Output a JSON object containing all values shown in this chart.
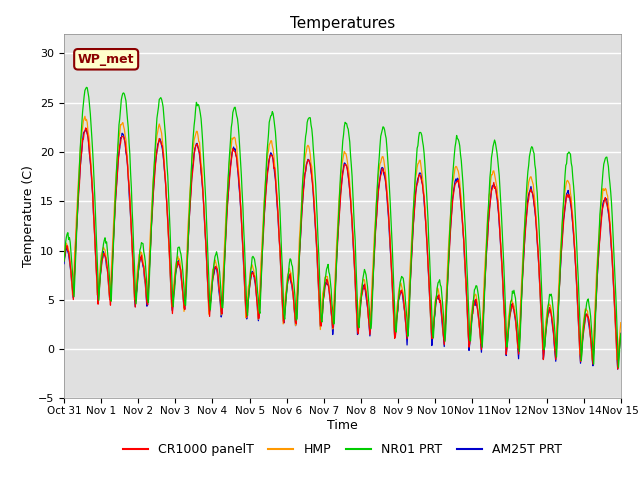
{
  "title": "Temperatures",
  "xlabel": "Time",
  "ylabel": "Temperature (C)",
  "ylim": [
    -5,
    32
  ],
  "yticks": [
    -5,
    0,
    5,
    10,
    15,
    20,
    25,
    30
  ],
  "num_days": 15,
  "annotation_text": "WP_met",
  "annotation_fontsize": 9,
  "line_colors": {
    "CR1000 panelT": "#ff0000",
    "HMP": "#ff9900",
    "NR01 PRT": "#00cc00",
    "AM25T PRT": "#0000cc"
  },
  "legend_labels": [
    "CR1000 panelT",
    "HMP",
    "NR01 PRT",
    "AM25T PRT"
  ],
  "background_color": "#e0e0e0",
  "title_fontsize": 11,
  "axis_fontsize": 9,
  "tick_fontsize": 8
}
